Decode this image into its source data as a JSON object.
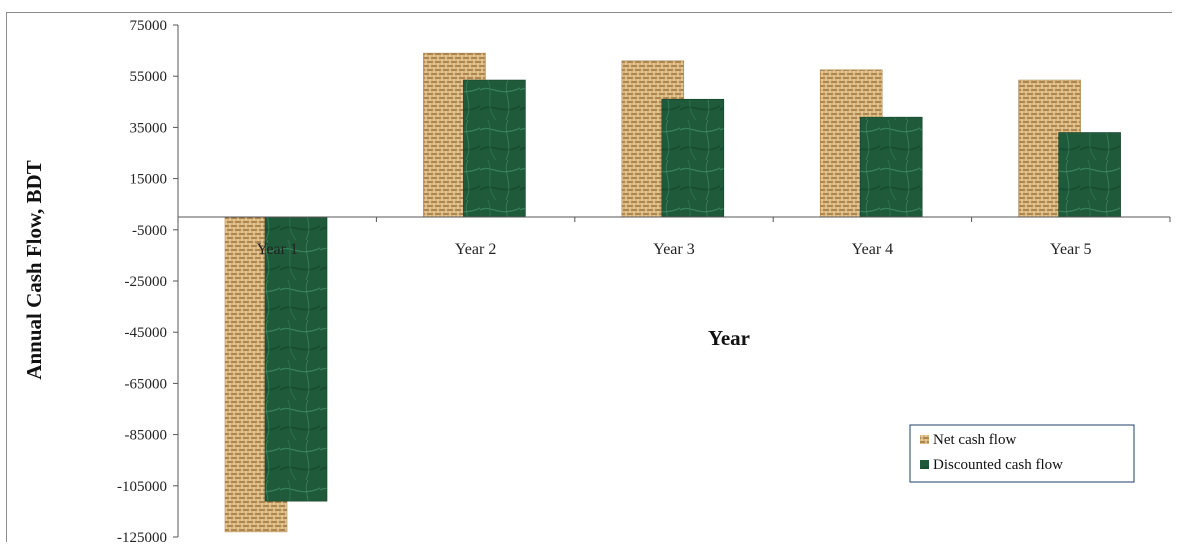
{
  "chart_data": {
    "type": "bar",
    "title": "",
    "xlabel": "Year",
    "ylabel": "Annual Cash Flow, BDT",
    "categories": [
      "Year 1",
      "Year 2",
      "Year 3",
      "Year 4",
      "Year 5"
    ],
    "ylim": [
      -125000,
      75000
    ],
    "yticks": [
      75000,
      55000,
      35000,
      15000,
      -5000,
      -25000,
      -45000,
      -65000,
      -85000,
      -105000,
      -125000
    ],
    "ytick_labels": [
      "75000",
      "55000",
      "35000",
      "15000",
      "-5000",
      "-25000",
      "-45000",
      "-65000",
      "-85000",
      "-105000",
      "-125000"
    ],
    "series": [
      {
        "name": "Net cash flow",
        "color": "#c8a46a",
        "values": [
          -123000,
          64000,
          61000,
          57500,
          53500
        ]
      },
      {
        "name": "Discounted cash flow",
        "color": "#1f5a3a",
        "values": [
          -111000,
          53500,
          46000,
          39000,
          33000
        ]
      }
    ],
    "legend_position": "bottom-right",
    "grid": false
  }
}
